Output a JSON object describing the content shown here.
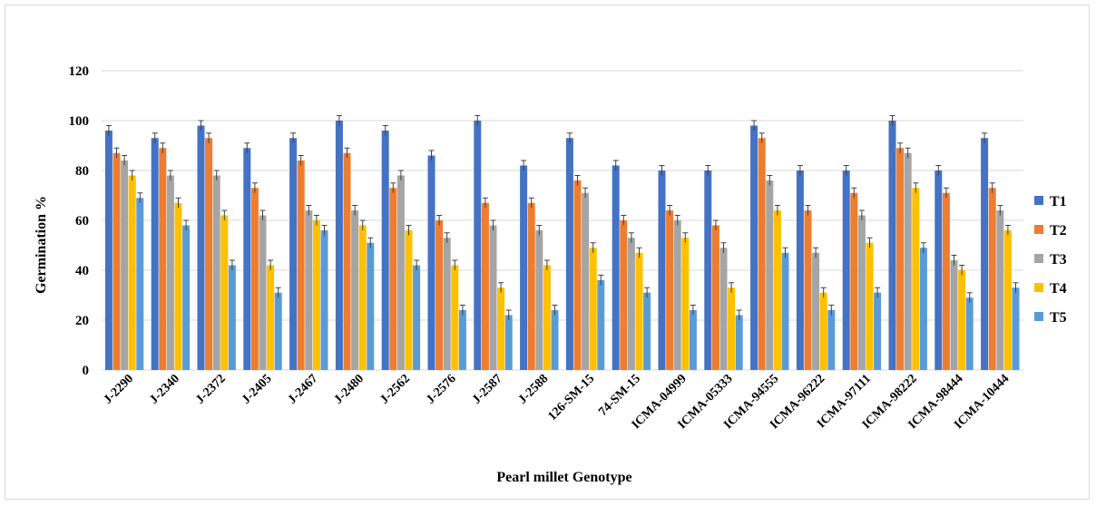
{
  "chart_data": {
    "type": "bar",
    "title": "",
    "xlabel": "Pearl millet Genotype",
    "ylabel": "Germination %",
    "ylim": [
      0,
      120
    ],
    "yticks": [
      0,
      20,
      40,
      60,
      80,
      100,
      120
    ],
    "grid": true,
    "legend_position": "right",
    "error_bars": true,
    "categories": [
      "J-2290",
      "J-2340",
      "J-2372",
      "J-2405",
      "J-2467",
      "J-2480",
      "J-2562",
      "J-2576",
      "J-2587",
      "J-2588",
      "126-SM-15",
      "74-SM-15",
      "ICMA-04999",
      "ICMA-05333",
      "ICMA-94555",
      "ICMA-96222",
      "ICMA-97111",
      "ICMA-98222",
      "ICMA-98444",
      "ICMA-10444"
    ],
    "series": [
      {
        "name": "T1",
        "color": "#4472C4",
        "values": [
          96,
          93,
          98,
          89,
          93,
          100,
          96,
          86,
          100,
          82,
          93,
          82,
          80,
          80,
          98,
          80,
          80,
          100,
          80,
          93
        ]
      },
      {
        "name": "T2",
        "color": "#ED7D31",
        "values": [
          87,
          89,
          93,
          73,
          84,
          87,
          73,
          60,
          67,
          67,
          76,
          60,
          64,
          58,
          93,
          64,
          71,
          89,
          71,
          73
        ]
      },
      {
        "name": "T3",
        "color": "#A5A5A5",
        "values": [
          84,
          78,
          78,
          62,
          64,
          64,
          78,
          53,
          58,
          56,
          71,
          53,
          60,
          49,
          76,
          47,
          62,
          87,
          44,
          64
        ]
      },
      {
        "name": "T4",
        "color": "#FFC000",
        "values": [
          78,
          67,
          62,
          42,
          60,
          58,
          56,
          42,
          33,
          42,
          49,
          47,
          53,
          33,
          64,
          31,
          51,
          73,
          40,
          56
        ]
      },
      {
        "name": "T5",
        "color": "#5B9BD5",
        "values": [
          69,
          58,
          42,
          31,
          56,
          51,
          42,
          24,
          22,
          24,
          36,
          31,
          24,
          22,
          47,
          24,
          31,
          49,
          29,
          33
        ]
      }
    ]
  }
}
